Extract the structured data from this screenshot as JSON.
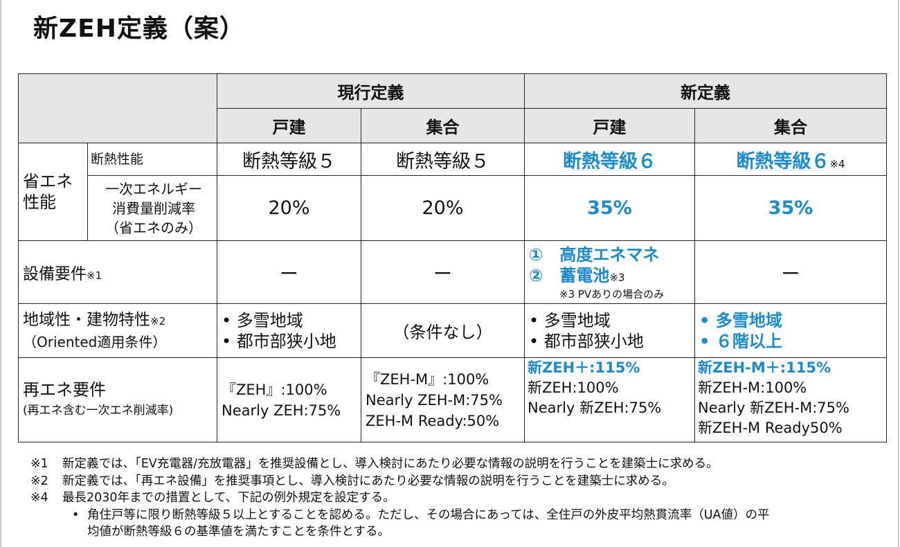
{
  "title": "新ZEH定義（案）",
  "headers": {
    "current": "現行定義",
    "new": "新定義",
    "detached": "戸建",
    "collective": "集合"
  },
  "energy_group_label": [
    "省エネ",
    "性能"
  ],
  "rows": {
    "insulation": {
      "label": "断熱性能",
      "values": [
        "断熱等級５",
        "断熱等級５",
        "断熱等級６",
        "断熱等級６"
      ],
      "note_mark": "※4"
    },
    "reduction": {
      "label": [
        "一次エネルギー",
        "消費量削減率",
        "（省エネのみ）"
      ],
      "values": [
        "20%",
        "20%",
        "35%",
        "35%"
      ]
    },
    "equipment": {
      "label": "設備要件",
      "label_mark": "※1",
      "values": [
        "ー",
        "ー",
        "",
        "ー"
      ],
      "new_detached_items": [
        "①　高度エネマネ",
        "②　蓄電池"
      ],
      "new_detached_mark": "※3",
      "new_detached_note": "※3 PVありの場合のみ"
    },
    "region": {
      "label": "地域性・建物特性",
      "label_mark": "※2",
      "label_sub": "（Oriented適用条件）",
      "current_detached": [
        "•  多雪地域",
        "•  都市部狭小地"
      ],
      "current_collective": "（条件なし）",
      "new_detached": [
        "•  多雪地域",
        "•  都市部狭小地"
      ],
      "new_collective": [
        "•  多雪地域",
        "•  ６階以上"
      ]
    },
    "renewable": {
      "label": "再エネ要件",
      "label_sub": "(再エネ含む一次エネ削減率)",
      "current_detached": [
        "『ZEH』:100%",
        "Nearly ZEH:75%"
      ],
      "current_collective": [
        "『ZEH-M』:100%",
        "Nearly ZEH-M:75%",
        "ZEH-M Ready:50%"
      ],
      "new_detached_highlight": "新ZEH＋:115%",
      "new_detached": [
        "新ZEH:100%",
        "Nearly 新ZEH:75%"
      ],
      "new_collective_highlight": "新ZEH-M＋:115%",
      "new_collective": [
        "新ZEH-M:100%",
        "Nearly 新ZEH-M:75%",
        "新ZEH-M Ready50%"
      ]
    }
  },
  "footnotes": [
    {
      "mark": "※1",
      "text": "新定義では、「EV充電器/充放電器」を推奨設備とし、導入検討にあたり必要な情報の説明を行うことを建築士に求める。"
    },
    {
      "mark": "※2",
      "text": "新定義では、「再エネ設備」を推奨事項とし、導入検討にあたり必要な情報の説明を行うことを建築士に求める。"
    },
    {
      "mark": "※4",
      "text": "最長2030年までの措置として、下記の例外規定を設定する。"
    }
  ],
  "footnote_sub": {
    "bullet": "•",
    "line1": "角住戸等に限り断熱等級５以上とすることを認める。ただし、その場合にあっては、全住戸の外皮平均熱貫流率（UA値）の平",
    "line2": "均値が断熱等級６の基準値を満たすことを条件とする。"
  },
  "colors": {
    "accent": "#1a8ccc",
    "header_bg": "#e6e6e6"
  }
}
